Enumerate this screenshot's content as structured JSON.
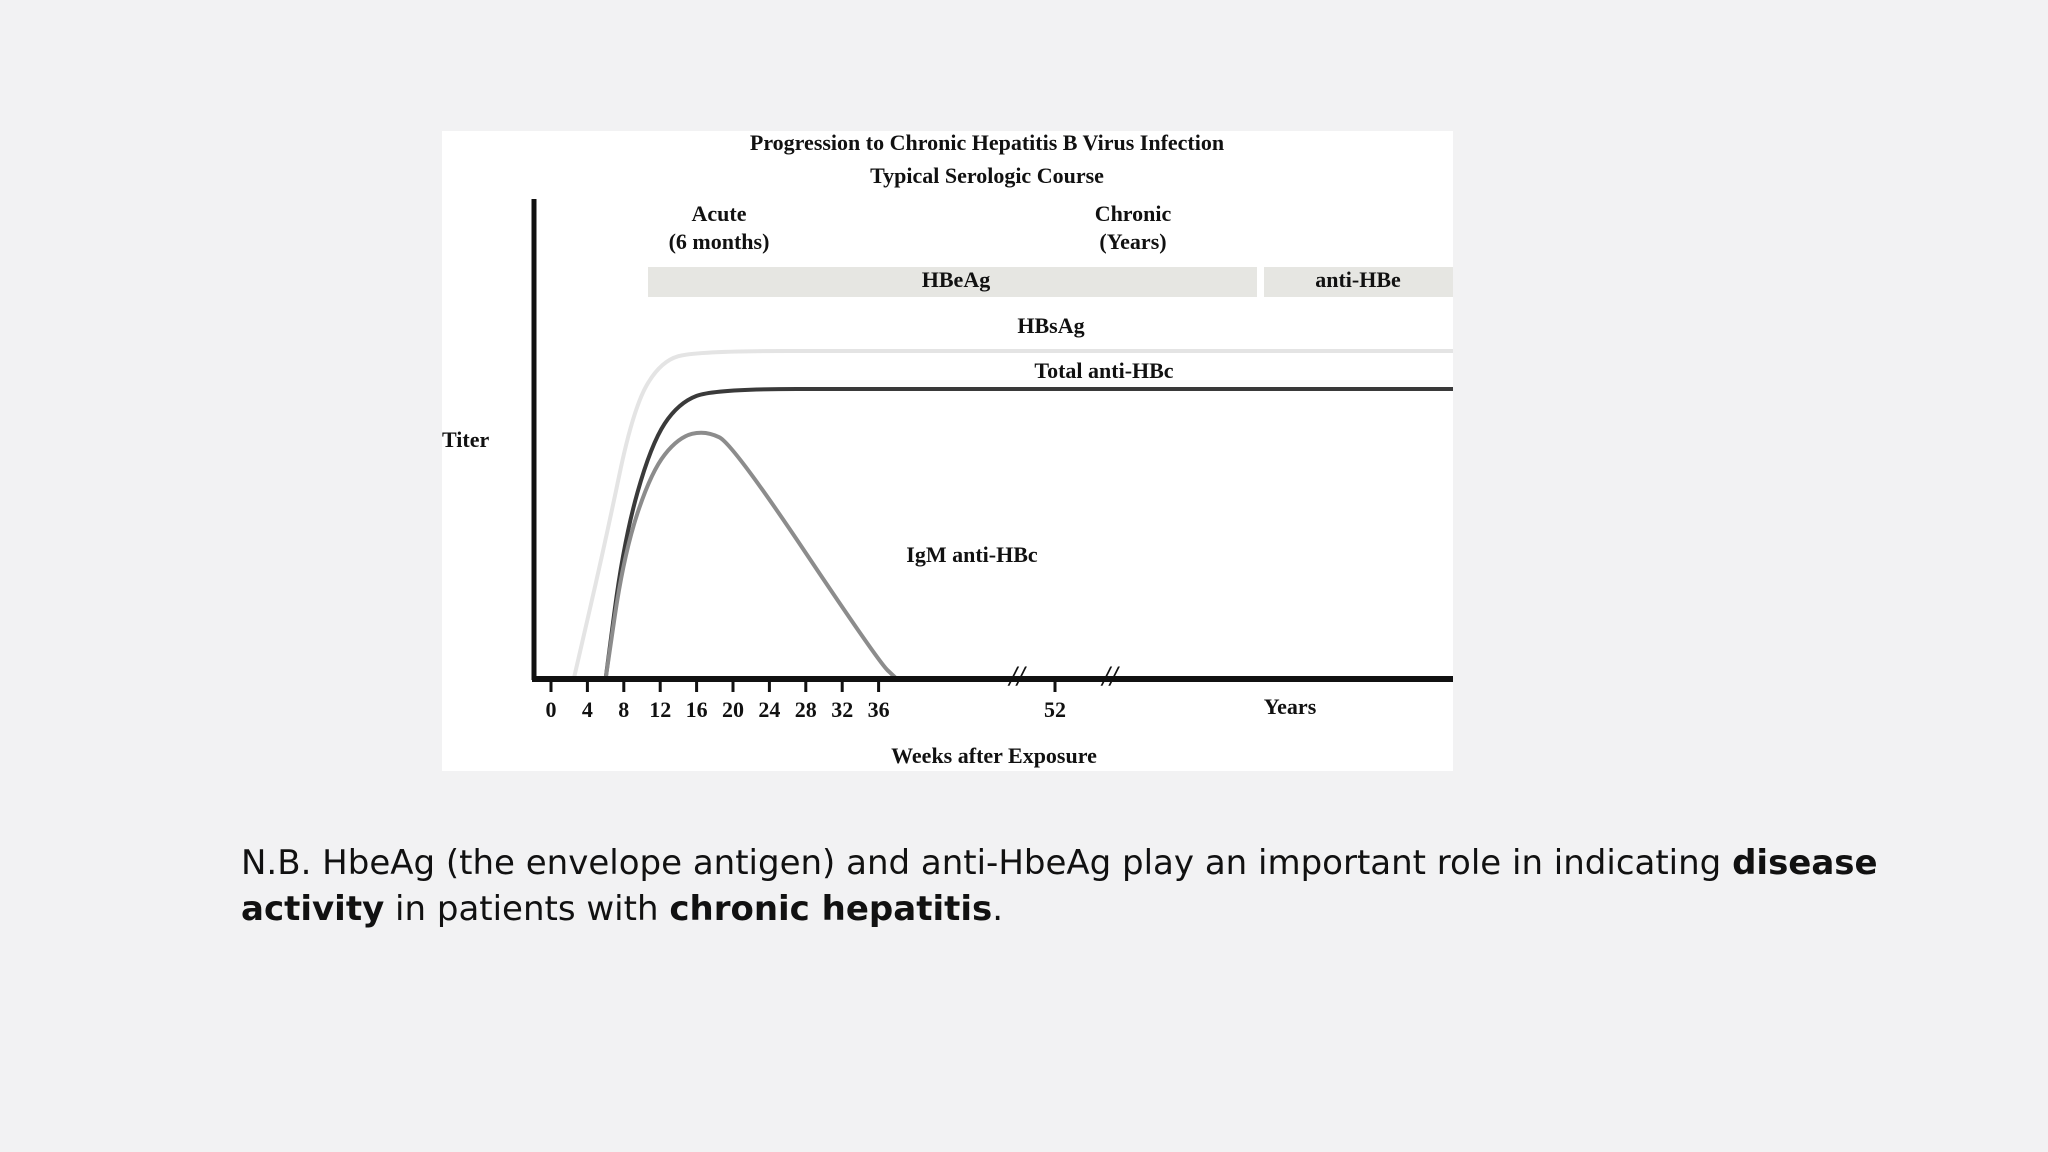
{
  "chart_data": {
    "type": "line",
    "title": "Progression to Chronic Hepatitis B Virus Infection",
    "subtitle": "Typical Serologic Course",
    "phases": [
      {
        "label": "Acute",
        "sublabel": "(6 months)"
      },
      {
        "label": "Chronic",
        "sublabel": "(Years)"
      }
    ],
    "bands": [
      {
        "label": "HBeAg"
      },
      {
        "label": "anti-HBe"
      }
    ],
    "ylabel": "Titer",
    "xlabel": "Weeks after Exposure",
    "x_ticks": [
      "0",
      "4",
      "8",
      "12",
      "16",
      "20",
      "24",
      "28",
      "32",
      "36",
      "52"
    ],
    "x_years_label": "Years",
    "axis_break_marks": [
      "//",
      "//"
    ],
    "series": [
      {
        "name": "HBsAg",
        "color": "#e4e4e4",
        "points": [
          [
            2.5,
            0
          ],
          [
            6,
            0.4
          ],
          [
            9,
            0.78
          ],
          [
            12,
            0.92
          ],
          [
            16,
            0.95
          ],
          [
            36,
            0.95
          ],
          [
            999,
            0.95
          ]
        ]
      },
      {
        "name": "Total anti-HBc",
        "color": "#3a3a3a",
        "points": [
          [
            6,
            0
          ],
          [
            8,
            0.4
          ],
          [
            11,
            0.68
          ],
          [
            14,
            0.8
          ],
          [
            18,
            0.84
          ],
          [
            36,
            0.84
          ],
          [
            999,
            0.84
          ]
        ]
      },
      {
        "name": "IgM anti-HBc",
        "color": "#8c8c8c",
        "points": [
          [
            6,
            0
          ],
          [
            8,
            0.36
          ],
          [
            11,
            0.6
          ],
          [
            14,
            0.7
          ],
          [
            17,
            0.72
          ],
          [
            20,
            0.68
          ],
          [
            36,
            0.05
          ],
          [
            38,
            0
          ]
        ]
      }
    ]
  },
  "caption": {
    "part1": "N.B. HbeAg (the envelope antigen) and anti-HbeAg play an important role in indicating ",
    "bold1": "disease activity",
    "part2": " in patients with ",
    "bold2": "chronic hepatitis",
    "part3": "."
  }
}
